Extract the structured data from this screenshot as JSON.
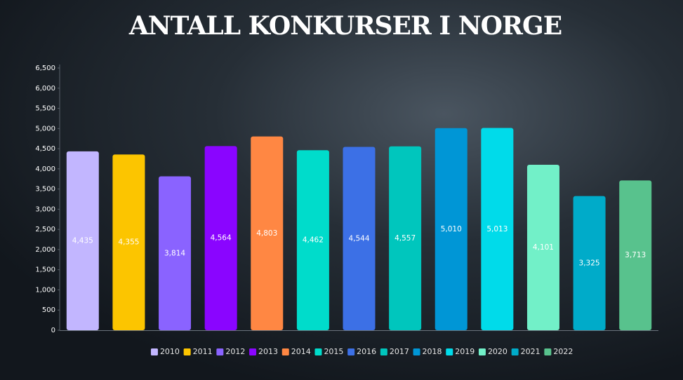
{
  "chart_data": {
    "type": "bar",
    "title": "ANTALL KONKURSER I NORGE",
    "categories": [
      "2010",
      "2011",
      "2012",
      "2013",
      "2014",
      "2015",
      "2016",
      "2017",
      "2018",
      "2019",
      "2020",
      "2021",
      "2022"
    ],
    "values": [
      4435,
      4355,
      3814,
      4564,
      4803,
      4462,
      4544,
      4557,
      5010,
      5013,
      4101,
      3325,
      3713
    ],
    "value_labels": [
      "4,435",
      "4,355",
      "3,814",
      "4,564",
      "4,803",
      "4,462",
      "4,544",
      "4,557",
      "5,010",
      "5,013",
      "4,101",
      "3,325",
      "3,713"
    ],
    "colors": [
      "#c2b6ff",
      "#fcc500",
      "#8a63ff",
      "#8a05ff",
      "#ff8743",
      "#00dccb",
      "#3c70e6",
      "#00c6bd",
      "#0096d6",
      "#00dbea",
      "#72f0c8",
      "#00abc9",
      "#58c28d"
    ],
    "ylim": [
      0,
      6500
    ],
    "yticks": [
      0,
      500,
      {
        "value": 1000,
        "label": "1,000"
      },
      {
        "value": 1500,
        "label": "1,500"
      },
      {
        "value": 2000,
        "label": "2,000"
      },
      {
        "value": 2500,
        "label": "2,500"
      },
      {
        "value": 3000,
        "label": "3,000"
      },
      {
        "value": 3500,
        "label": "3,500"
      },
      {
        "value": 4000,
        "label": "4,000"
      },
      {
        "value": 4500,
        "label": "4,500"
      },
      {
        "value": 5000,
        "label": "5,000"
      },
      {
        "value": 5500,
        "label": "5,500"
      },
      {
        "value": 6000,
        "label": "6,000"
      },
      {
        "value": 6500,
        "label": "6,500"
      }
    ],
    "grid": false,
    "legend": "bottom"
  }
}
